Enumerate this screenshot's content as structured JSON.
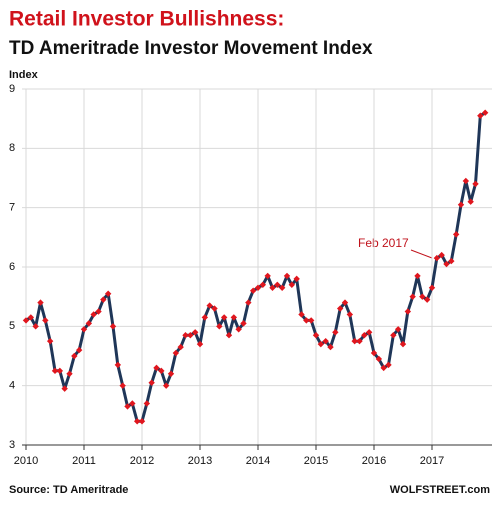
{
  "chart_data": {
    "type": "line",
    "title": "Retail Investor Bullishness:",
    "subtitle": "TD Ameritrade Investor Movement Index",
    "y_label": "Index",
    "source": "Source: TD Ameritrade",
    "credit": "WOLFSTREET.com",
    "annotation": "Feb 2017",
    "categories": [
      "2010",
      null,
      null,
      null,
      null,
      null,
      null,
      null,
      null,
      null,
      null,
      null,
      "2011",
      null,
      null,
      null,
      null,
      null,
      null,
      null,
      null,
      null,
      null,
      null,
      "2012",
      null,
      null,
      null,
      null,
      null,
      null,
      null,
      null,
      null,
      null,
      null,
      "2013",
      null,
      null,
      null,
      null,
      null,
      null,
      null,
      null,
      null,
      null,
      null,
      "2014",
      null,
      null,
      null,
      null,
      null,
      null,
      null,
      null,
      null,
      null,
      null,
      "2015",
      null,
      null,
      null,
      null,
      null,
      null,
      null,
      null,
      null,
      null,
      null,
      "2016",
      null,
      null,
      null,
      null,
      null,
      null,
      null,
      null,
      null,
      null,
      null,
      "2017",
      null,
      null,
      null,
      null,
      null,
      null,
      null,
      null,
      null,
      null,
      null
    ],
    "values": [
      5.1,
      5.15,
      5.0,
      5.4,
      5.1,
      4.75,
      4.25,
      4.25,
      3.95,
      4.2,
      4.5,
      4.6,
      4.95,
      5.05,
      5.2,
      5.25,
      5.45,
      5.55,
      5.0,
      4.35,
      4.0,
      3.65,
      3.7,
      3.4,
      3.4,
      3.7,
      4.05,
      4.3,
      4.25,
      4.0,
      4.2,
      4.55,
      4.65,
      4.85,
      4.85,
      4.9,
      4.7,
      5.15,
      5.35,
      5.3,
      5.0,
      5.15,
      4.85,
      5.15,
      4.95,
      5.05,
      5.4,
      5.6,
      5.65,
      5.7,
      5.85,
      5.65,
      5.7,
      5.65,
      5.85,
      5.7,
      5.8,
      5.2,
      5.1,
      5.1,
      4.85,
      4.7,
      4.75,
      4.65,
      4.9,
      5.3,
      5.4,
      5.2,
      4.75,
      4.75,
      4.85,
      4.9,
      4.55,
      4.45,
      4.3,
      4.35,
      4.85,
      4.95,
      4.7,
      5.25,
      5.5,
      5.85,
      5.5,
      5.45,
      5.65,
      6.15,
      6.2,
      6.05,
      6.1,
      6.55,
      7.05,
      7.45,
      7.1,
      7.4,
      8.55,
      8.6
    ],
    "color": "#1f3658",
    "marker_color": "#e0161e",
    "ylim": [
      3,
      9
    ],
    "yticks": [
      3,
      4,
      5,
      6,
      7,
      8,
      9
    ],
    "grid": true
  }
}
